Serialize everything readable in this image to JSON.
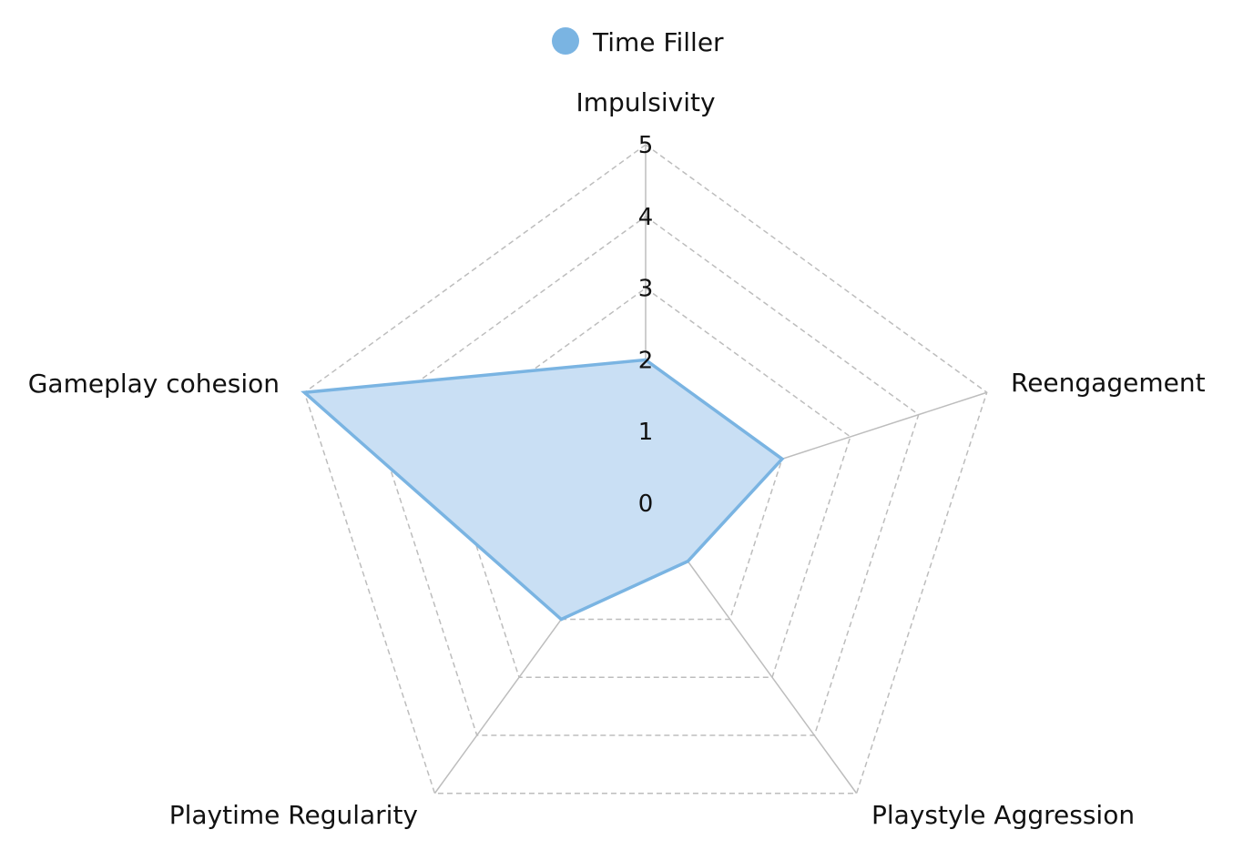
{
  "chart_data": {
    "type": "radar",
    "axes": [
      "Impulsivity",
      "Reengagement",
      "Playstyle Aggression",
      "Playtime Regularity",
      "Gameplay cohesion"
    ],
    "rlim": [
      0,
      5
    ],
    "ticks": [
      "0",
      "1",
      "2",
      "3",
      "4",
      "5"
    ],
    "grid": true,
    "legend_position": "top-center",
    "series": [
      {
        "name": "Time Filler",
        "values": [
          2,
          2,
          1,
          2,
          5
        ],
        "color": "#7ab4e2",
        "fill_color": "#c9dff4"
      }
    ]
  }
}
